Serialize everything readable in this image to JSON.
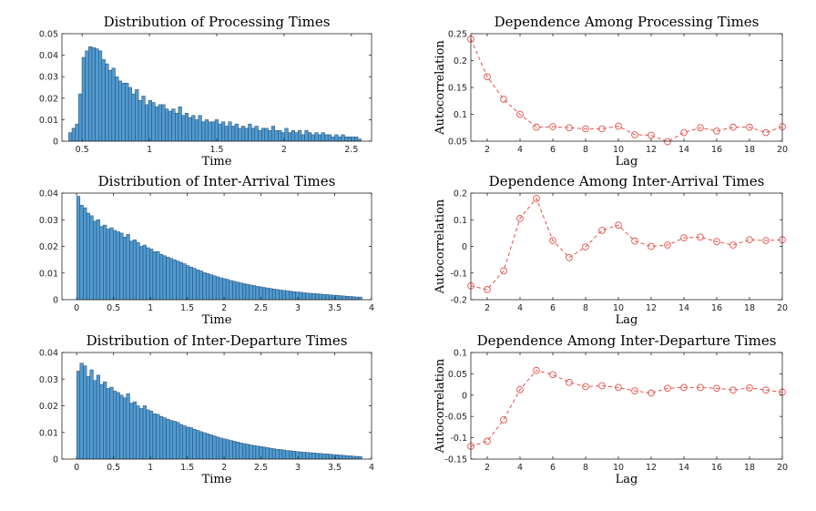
{
  "colors": {
    "bar_fill": "#4f9bd1",
    "bar_edge": "#1f3b5c",
    "acf_line": "#e8504a"
  },
  "chart_data": [
    {
      "type": "bar",
      "title": "Distribution of Processing Times",
      "xlabel": "Time",
      "ylabel": "",
      "xlim": [
        0.35,
        2.65
      ],
      "ylim": [
        0,
        0.05
      ],
      "xticks": [
        0.5,
        1,
        1.5,
        2,
        2.5
      ],
      "xtick_labels": [
        "0.5",
        "1",
        "1.5",
        "2",
        "2.5"
      ],
      "yticks": [
        0,
        0.01,
        0.02,
        0.03,
        0.04,
        0.05
      ],
      "ytick_labels": [
        "0",
        "0.01",
        "0.02",
        "0.03",
        "0.04",
        "0.05"
      ],
      "bin_start": 0.4,
      "bin_width": 0.0247,
      "values": [
        0.004,
        0.006,
        0.008,
        0.022,
        0.039,
        0.042,
        0.044,
        0.0435,
        0.043,
        0.042,
        0.038,
        0.036,
        0.033,
        0.034,
        0.03,
        0.028,
        0.027,
        0.027,
        0.025,
        0.022,
        0.024,
        0.019,
        0.021,
        0.017,
        0.019,
        0.018,
        0.016,
        0.017,
        0.017,
        0.015,
        0.014,
        0.015,
        0.013,
        0.016,
        0.012,
        0.013,
        0.011,
        0.012,
        0.01,
        0.012,
        0.009,
        0.01,
        0.009,
        0.009,
        0.01,
        0.008,
        0.009,
        0.007,
        0.009,
        0.007,
        0.008,
        0.006,
        0.007,
        0.006,
        0.008,
        0.006,
        0.007,
        0.005,
        0.006,
        0.006,
        0.005,
        0.007,
        0.005,
        0.005,
        0.004,
        0.006,
        0.004,
        0.005,
        0.004,
        0.005,
        0.003,
        0.005,
        0.004,
        0.003,
        0.004,
        0.003,
        0.004,
        0.003,
        0.003,
        0.002,
        0.003,
        0.002,
        0.003,
        0.002,
        0.002,
        0.002,
        0.002,
        0.001
      ]
    },
    {
      "type": "line",
      "title": "Dependence Among Processing Times",
      "xlabel": "Lag",
      "ylabel": "Autocorrelation",
      "xlim": [
        1,
        20
      ],
      "ylim": [
        0.05,
        0.25
      ],
      "xticks": [
        2,
        4,
        6,
        8,
        10,
        12,
        14,
        16,
        18,
        20
      ],
      "xtick_labels": [
        "2",
        "4",
        "6",
        "8",
        "10",
        "12",
        "14",
        "16",
        "18",
        "20"
      ],
      "yticks": [
        0.05,
        0.1,
        0.15,
        0.2,
        0.25
      ],
      "ytick_labels": [
        "0.05",
        "0.1",
        "0.15",
        "0.2",
        "0.25"
      ],
      "x": [
        1,
        2,
        3,
        4,
        5,
        6,
        7,
        8,
        9,
        10,
        11,
        12,
        13,
        14,
        15,
        16,
        17,
        18,
        19,
        20
      ],
      "y": [
        0.24,
        0.17,
        0.128,
        0.1,
        0.076,
        0.077,
        0.075,
        0.073,
        0.073,
        0.078,
        0.062,
        0.061,
        0.049,
        0.066,
        0.075,
        0.069,
        0.076,
        0.076,
        0.066,
        0.077
      ]
    },
    {
      "type": "bar",
      "title": "Distribution of Inter-Arrival Times",
      "xlabel": "Time",
      "ylabel": "",
      "xlim": [
        -0.2,
        4.0
      ],
      "ylim": [
        0,
        0.04
      ],
      "xticks": [
        0,
        0.5,
        1,
        1.5,
        2,
        2.5,
        3,
        3.5,
        4
      ],
      "xtick_labels": [
        "0",
        "0.5",
        "1",
        "1.5",
        "2",
        "2.5",
        "3",
        "3.5",
        "4"
      ],
      "yticks": [
        0,
        0.01,
        0.02,
        0.03,
        0.04
      ],
      "ytick_labels": [
        "0",
        "0.01",
        "0.02",
        "0.03",
        "0.04"
      ],
      "bin_start": 0.0,
      "bin_width": 0.045,
      "values": [
        0.0388,
        0.0355,
        0.0345,
        0.0325,
        0.0315,
        0.0295,
        0.03,
        0.0275,
        0.028,
        0.0265,
        0.027,
        0.026,
        0.0255,
        0.025,
        0.0235,
        0.0245,
        0.022,
        0.0225,
        0.0215,
        0.02,
        0.0205,
        0.0195,
        0.019,
        0.018,
        0.018,
        0.017,
        0.0165,
        0.016,
        0.0155,
        0.015,
        0.0145,
        0.014,
        0.0135,
        0.0128,
        0.0122,
        0.0118,
        0.0112,
        0.0108,
        0.0102,
        0.0098,
        0.0094,
        0.009,
        0.0086,
        0.0082,
        0.0079,
        0.0076,
        0.0072,
        0.0069,
        0.0066,
        0.0063,
        0.006,
        0.0058,
        0.0055,
        0.0053,
        0.005,
        0.0048,
        0.0046,
        0.0044,
        0.0042,
        0.004,
        0.0038,
        0.0036,
        0.0035,
        0.0033,
        0.0032,
        0.003,
        0.0029,
        0.0028,
        0.0026,
        0.0025,
        0.0024,
        0.0023,
        0.0022,
        0.0021,
        0.002,
        0.0019,
        0.0018,
        0.0017,
        0.0016,
        0.0015,
        0.0014,
        0.0013,
        0.0012,
        0.0011,
        0.001,
        0.001
      ]
    },
    {
      "type": "line",
      "title": "Dependence Among Inter-Arrival Times",
      "xlabel": "Lag",
      "ylabel": "Autocorrelation",
      "xlim": [
        1,
        20
      ],
      "ylim": [
        -0.2,
        0.2
      ],
      "xticks": [
        2,
        4,
        6,
        8,
        10,
        12,
        14,
        16,
        18,
        20
      ],
      "xtick_labels": [
        "2",
        "4",
        "6",
        "8",
        "10",
        "12",
        "14",
        "16",
        "18",
        "20"
      ],
      "yticks": [
        -0.2,
        -0.1,
        0,
        0.1,
        0.2
      ],
      "ytick_labels": [
        "-0.2",
        "-0.1",
        "0",
        "0.1",
        "0.2"
      ],
      "x": [
        1,
        2,
        3,
        4,
        5,
        6,
        7,
        8,
        9,
        10,
        11,
        12,
        13,
        14,
        15,
        16,
        17,
        18,
        19,
        20
      ],
      "y": [
        -0.148,
        -0.162,
        -0.092,
        0.105,
        0.18,
        0.022,
        -0.042,
        -0.002,
        0.06,
        0.08,
        0.02,
        0.0,
        0.005,
        0.032,
        0.035,
        0.018,
        0.005,
        0.025,
        0.022,
        0.025
      ]
    },
    {
      "type": "bar",
      "title": "Distribution of Inter-Departure Times",
      "xlabel": "Time",
      "ylabel": "",
      "xlim": [
        -0.2,
        4.0
      ],
      "ylim": [
        0,
        0.04
      ],
      "xticks": [
        0,
        0.5,
        1,
        1.5,
        2,
        2.5,
        3,
        3.5,
        4
      ],
      "xtick_labels": [
        "0",
        "0.5",
        "1",
        "1.5",
        "2",
        "2.5",
        "3",
        "3.5",
        "4"
      ],
      "yticks": [
        0,
        0.01,
        0.02,
        0.03,
        0.04
      ],
      "ytick_labels": [
        "0",
        "0.01",
        "0.02",
        "0.03",
        "0.04"
      ],
      "bin_start": 0.0,
      "bin_width": 0.045,
      "values": [
        0.033,
        0.036,
        0.035,
        0.031,
        0.0335,
        0.0295,
        0.0315,
        0.028,
        0.029,
        0.0265,
        0.027,
        0.0255,
        0.025,
        0.024,
        0.023,
        0.0245,
        0.021,
        0.0215,
        0.02,
        0.019,
        0.02,
        0.0185,
        0.018,
        0.017,
        0.0168,
        0.016,
        0.0155,
        0.015,
        0.0145,
        0.0142,
        0.0138,
        0.013,
        0.0125,
        0.012,
        0.0118,
        0.0112,
        0.0108,
        0.0103,
        0.0099,
        0.0095,
        0.0091,
        0.0087,
        0.0083,
        0.0079,
        0.0076,
        0.0073,
        0.007,
        0.0067,
        0.0064,
        0.0061,
        0.0058,
        0.0056,
        0.0053,
        0.0051,
        0.0049,
        0.0047,
        0.0045,
        0.0043,
        0.0041,
        0.0039,
        0.0037,
        0.0036,
        0.0034,
        0.0032,
        0.0031,
        0.003,
        0.0028,
        0.0027,
        0.0026,
        0.0025,
        0.0024,
        0.0023,
        0.0022,
        0.0021,
        0.002,
        0.0019,
        0.0018,
        0.0017,
        0.0016,
        0.0015,
        0.0014,
        0.0013,
        0.0012,
        0.0011,
        0.001,
        0.001
      ]
    },
    {
      "type": "line",
      "title": "Dependence Among Inter-Departure Times",
      "xlabel": "Lag",
      "ylabel": "Autocorrelation",
      "xlim": [
        1,
        20
      ],
      "ylim": [
        -0.15,
        0.1
      ],
      "xticks": [
        2,
        4,
        6,
        8,
        10,
        12,
        14,
        16,
        18,
        20
      ],
      "xtick_labels": [
        "2",
        "4",
        "6",
        "8",
        "10",
        "12",
        "14",
        "16",
        "18",
        "20"
      ],
      "yticks": [
        -0.15,
        -0.1,
        -0.05,
        0,
        0.05,
        0.1
      ],
      "ytick_labels": [
        "-0.15",
        "-0.1",
        "-0.05",
        "0",
        "0.05",
        "0.1"
      ],
      "x": [
        1,
        2,
        3,
        4,
        5,
        6,
        7,
        8,
        9,
        10,
        11,
        12,
        13,
        14,
        15,
        16,
        17,
        18,
        19,
        20
      ],
      "y": [
        -0.12,
        -0.108,
        -0.058,
        0.013,
        0.058,
        0.048,
        0.03,
        0.02,
        0.022,
        0.018,
        0.01,
        0.005,
        0.016,
        0.018,
        0.018,
        0.016,
        0.012,
        0.017,
        0.012,
        0.007
      ]
    }
  ]
}
